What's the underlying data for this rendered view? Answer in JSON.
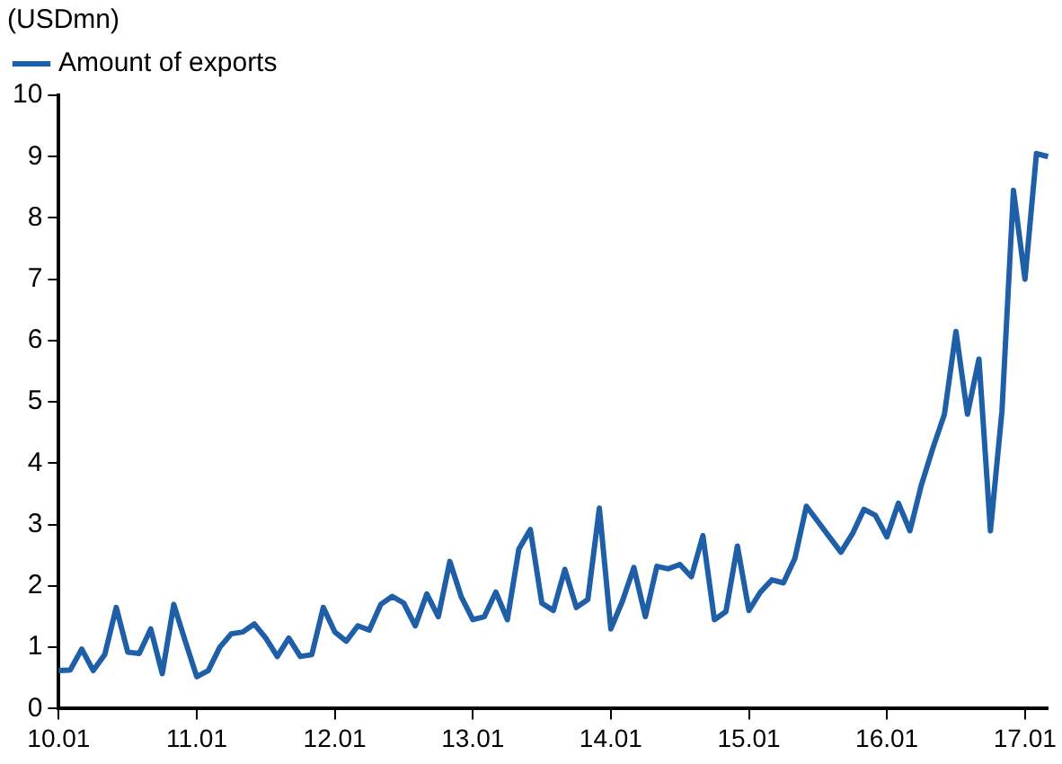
{
  "chart_data": {
    "type": "line",
    "ylabel": "(USDmn)",
    "categories": [
      "10.01",
      null,
      null,
      null,
      null,
      null,
      null,
      null,
      null,
      null,
      null,
      null,
      "11.01",
      null,
      null,
      null,
      null,
      null,
      null,
      null,
      null,
      null,
      null,
      null,
      "12.01",
      null,
      null,
      null,
      null,
      null,
      null,
      null,
      null,
      null,
      null,
      null,
      "13.01",
      null,
      null,
      null,
      null,
      null,
      null,
      null,
      null,
      null,
      null,
      null,
      "14.01",
      null,
      null,
      null,
      null,
      null,
      null,
      null,
      null,
      null,
      null,
      null,
      "15.01",
      null,
      null,
      null,
      null,
      null,
      null,
      null,
      null,
      null,
      null,
      null,
      "16.01",
      null,
      null,
      null,
      null,
      null,
      null,
      null,
      null,
      null,
      null,
      null,
      "17.01",
      null,
      null
    ],
    "series": [
      {
        "name": "Amount of exports",
        "color": "#1f5fa8",
        "values": [
          0.62,
          0.63,
          0.97,
          0.62,
          0.88,
          1.65,
          0.92,
          0.9,
          1.3,
          0.57,
          1.7,
          1.1,
          0.52,
          0.62,
          1.0,
          1.22,
          1.25,
          1.38,
          1.15,
          0.85,
          1.15,
          0.85,
          0.88,
          1.65,
          1.25,
          1.1,
          1.35,
          1.28,
          1.7,
          1.83,
          1.72,
          1.35,
          1.87,
          1.5,
          2.4,
          1.82,
          1.45,
          1.5,
          1.9,
          1.45,
          2.6,
          2.92,
          1.72,
          1.6,
          2.27,
          1.65,
          1.78,
          3.27,
          1.3,
          1.75,
          2.3,
          1.5,
          2.32,
          2.28,
          2.35,
          2.15,
          2.82,
          1.45,
          1.58,
          2.65,
          1.6,
          1.9,
          2.1,
          2.05,
          2.45,
          3.3,
          3.05,
          2.8,
          2.55,
          2.85,
          3.25,
          3.15,
          2.8,
          3.35,
          2.9,
          3.65,
          4.25,
          4.8,
          6.15,
          4.8,
          5.7,
          2.9,
          4.85,
          8.45,
          7.0,
          9.05,
          9.0
        ]
      }
    ],
    "ylim": [
      0,
      10
    ],
    "yticks": [
      0,
      1,
      2,
      3,
      4,
      5,
      6,
      7,
      8,
      9,
      10
    ],
    "grid": false,
    "legend": "top left",
    "marker": "none",
    "line_style": "solid"
  }
}
